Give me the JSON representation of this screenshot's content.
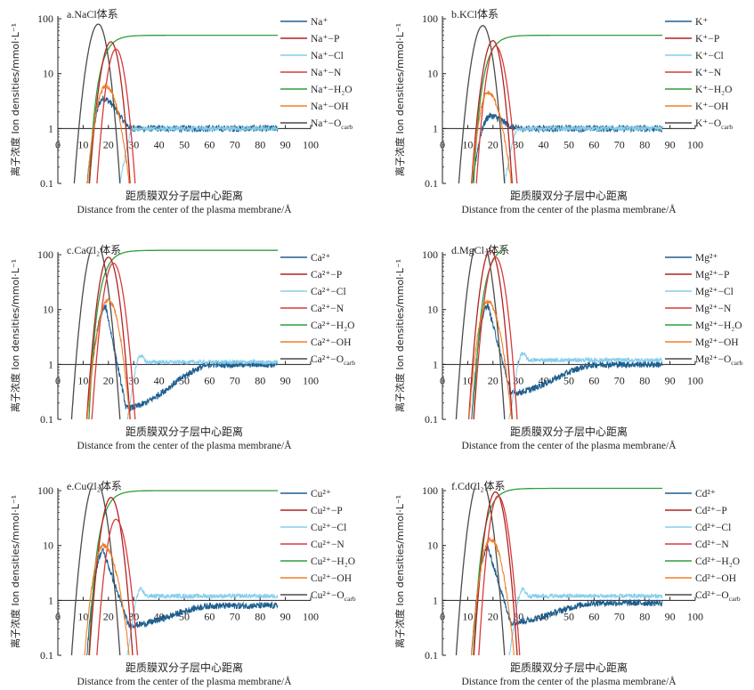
{
  "figure": {
    "ylabel": "离子浓度 Ion densities/mmol·L⁻¹",
    "xlabel_cn": "距质膜双分子层中心距离",
    "xlabel_en": "Distance from the center of the plasma membrane/Å"
  },
  "chart_data": [
    {
      "panel": "a",
      "title": "a.NaCl体系",
      "type": "line",
      "ion": "Na⁺",
      "yscale": "log",
      "ylim": [
        0.1,
        100
      ],
      "xlim": [
        0,
        100
      ],
      "xticks": [
        0,
        10,
        20,
        30,
        40,
        50,
        60,
        70,
        80,
        90,
        100
      ],
      "yticks": [
        "0.1",
        "1",
        "10",
        "100"
      ],
      "series": [
        {
          "name": "Na⁺",
          "color": "#1f5f8f",
          "peak_x": 18,
          "peak_y": 3.5,
          "tail": 1.0,
          "dip_x": 0,
          "dip_y": 0
        },
        {
          "name": "Na⁺−P",
          "color": "#b22222",
          "peak_x": 21,
          "peak_y": 38,
          "x0": 12,
          "x1": 29
        },
        {
          "name": "Na⁺−Cl",
          "color": "#87ceeb",
          "rise_x": 22,
          "plateau": 1.0
        },
        {
          "name": "Na⁺−N",
          "color": "#d93a3a",
          "peak_x": 23,
          "peak_y": 28,
          "x0": 15,
          "x1": 31
        },
        {
          "name": "Na⁺−H₂O",
          "color": "#2e9e3a",
          "rise_x": 12,
          "plateau": 50
        },
        {
          "name": "Na⁺−OH",
          "color": "#f07e26",
          "peak_x": 19,
          "peak_y": 6,
          "x0": 11,
          "x1": 29
        },
        {
          "name": "Na⁺−O_carb",
          "color": "#4a4a4a",
          "peak_x": 16,
          "peak_y": 80,
          "x0": 6,
          "x1": 25
        }
      ]
    },
    {
      "panel": "b",
      "title": "b.KCl体系",
      "type": "line",
      "ion": "K⁺",
      "yscale": "log",
      "ylim": [
        0.1,
        100
      ],
      "xlim": [
        0,
        100
      ],
      "xticks": [
        0,
        10,
        20,
        30,
        40,
        50,
        60,
        70,
        80,
        90,
        100
      ],
      "yticks": [
        "0.1",
        "1",
        "10",
        "100"
      ],
      "series": [
        {
          "name": "K⁺",
          "color": "#1f5f8f",
          "peak_x": 19,
          "peak_y": 1.7,
          "tail": 1.0,
          "dip_x": 0,
          "dip_y": 0
        },
        {
          "name": "K⁺−P",
          "color": "#b22222",
          "peak_x": 20,
          "peak_y": 40,
          "x0": 11,
          "x1": 28
        },
        {
          "name": "K⁺−Cl",
          "color": "#87ceeb",
          "rise_x": 22,
          "plateau": 1.0
        },
        {
          "name": "K⁺−N",
          "color": "#d93a3a",
          "peak_x": 21,
          "peak_y": 32,
          "x0": 13,
          "x1": 30
        },
        {
          "name": "K⁺−H₂O",
          "color": "#2e9e3a",
          "rise_x": 12,
          "plateau": 50
        },
        {
          "name": "K⁺−OH",
          "color": "#f07e26",
          "peak_x": 18,
          "peak_y": 4.5,
          "x0": 11,
          "x1": 28
        },
        {
          "name": "K⁺−O_carb",
          "color": "#4a4a4a",
          "peak_x": 16,
          "peak_y": 75,
          "x0": 6,
          "x1": 25
        }
      ]
    },
    {
      "panel": "c",
      "title": "c.CaCl₂体系",
      "type": "line",
      "ion": "Ca²⁺",
      "yscale": "log",
      "ylim": [
        0.1,
        100
      ],
      "xlim": [
        0,
        100
      ],
      "xticks": [
        0,
        10,
        20,
        30,
        40,
        50,
        60,
        70,
        80,
        90,
        100
      ],
      "yticks": [
        "0.1",
        "1",
        "10",
        "100"
      ],
      "series": [
        {
          "name": "Ca²⁺",
          "color": "#1f5f8f",
          "peak_x": 19,
          "peak_y": 11,
          "tail": 1.0,
          "dip_x": 27,
          "dip_y": 0.16
        },
        {
          "name": "Ca²⁺−P",
          "color": "#b22222",
          "peak_x": 20,
          "peak_y": 90,
          "x0": 11,
          "x1": 29
        },
        {
          "name": "Ca²⁺−Cl",
          "color": "#87ceeb",
          "rise_x": 25,
          "plateau": 1.1
        },
        {
          "name": "Ca²⁺−N",
          "color": "#d93a3a",
          "peak_x": 22,
          "peak_y": 70,
          "x0": 13,
          "x1": 31
        },
        {
          "name": "Ca²⁺−H₂O",
          "color": "#2e9e3a",
          "rise_x": 12,
          "plateau": 120
        },
        {
          "name": "Ca²⁺−OH",
          "color": "#f07e26",
          "peak_x": 20,
          "peak_y": 15,
          "x0": 11,
          "x1": 29
        },
        {
          "name": "Ca²⁺−O_carb",
          "color": "#4a4a4a",
          "peak_x": 15,
          "peak_y": 170,
          "x0": 5,
          "x1": 25
        }
      ]
    },
    {
      "panel": "d",
      "title": "d.MgCl₂体系",
      "type": "line",
      "ion": "Mg²⁺",
      "yscale": "log",
      "ylim": [
        0.1,
        100
      ],
      "xlim": [
        0,
        100
      ],
      "xticks": [
        0,
        10,
        20,
        30,
        40,
        50,
        60,
        70,
        80,
        90,
        100
      ],
      "yticks": [
        "0.1",
        "1",
        "10",
        "100"
      ],
      "series": [
        {
          "name": "Mg²⁺",
          "color": "#1f5f8f",
          "peak_x": 18,
          "peak_y": 12,
          "tail": 1.0,
          "dip_x": 27,
          "dip_y": 0.3
        },
        {
          "name": "Mg²⁺−P",
          "color": "#b22222",
          "peak_x": 19,
          "peak_y": 120,
          "x0": 10,
          "x1": 28
        },
        {
          "name": "Mg²⁺−Cl",
          "color": "#87ceeb",
          "rise_x": 24,
          "plateau": 1.2
        },
        {
          "name": "Mg²⁺−N",
          "color": "#d93a3a",
          "peak_x": 21,
          "peak_y": 90,
          "x0": 12,
          "x1": 30
        },
        {
          "name": "Mg²⁺−H₂O",
          "color": "#2e9e3a",
          "rise_x": 12,
          "plateau": 150
        },
        {
          "name": "Mg²⁺−OH",
          "color": "#f07e26",
          "peak_x": 18,
          "peak_y": 14,
          "x0": 10,
          "x1": 28
        },
        {
          "name": "Mg²⁺−O_carb",
          "color": "#4a4a4a",
          "peak_x": 15,
          "peak_y": 220,
          "x0": 5,
          "x1": 25
        }
      ]
    },
    {
      "panel": "e",
      "title": "e.CuCl₂体系",
      "type": "line",
      "ion": "Cu²⁺",
      "yscale": "log",
      "ylim": [
        0.1,
        100
      ],
      "xlim": [
        0,
        100
      ],
      "xticks": [
        0,
        10,
        20,
        30,
        40,
        50,
        60,
        70,
        80,
        90,
        100
      ],
      "yticks": [
        "0.1",
        "1",
        "10",
        "100"
      ],
      "series": [
        {
          "name": "Cu²⁺",
          "color": "#1f5f8f",
          "peak_x": 18,
          "peak_y": 8,
          "tail": 0.8,
          "dip_x": 28,
          "dip_y": 0.35
        },
        {
          "name": "Cu²⁺−P",
          "color": "#b22222",
          "peak_x": 21,
          "peak_y": 75,
          "x0": 12,
          "x1": 30
        },
        {
          "name": "Cu²⁺−Cl",
          "color": "#87ceeb",
          "rise_x": 25,
          "plateau": 1.2
        },
        {
          "name": "Cu²⁺−N",
          "color": "#d93a3a",
          "peak_x": 23,
          "peak_y": 30,
          "x0": 15,
          "x1": 32
        },
        {
          "name": "Cu²⁺−H₂O",
          "color": "#2e9e3a",
          "rise_x": 12,
          "plateau": 100
        },
        {
          "name": "Cu²⁺−OH",
          "color": "#f07e26",
          "peak_x": 18,
          "peak_y": 10,
          "x0": 10,
          "x1": 29
        },
        {
          "name": "Cu²⁺−O_carb",
          "color": "#4a4a4a",
          "peak_x": 15,
          "peak_y": 150,
          "x0": 5,
          "x1": 25
        }
      ]
    },
    {
      "panel": "f",
      "title": "f.CdCl₂体系",
      "type": "line",
      "ion": "Cd²⁺",
      "yscale": "log",
      "ylim": [
        0.1,
        100
      ],
      "xlim": [
        0,
        100
      ],
      "xticks": [
        0,
        10,
        20,
        30,
        40,
        50,
        60,
        70,
        80,
        90,
        100
      ],
      "yticks": [
        "0.1",
        "1",
        "10",
        "100"
      ],
      "series": [
        {
          "name": "Cd²⁺",
          "color": "#1f5f8f",
          "peak_x": 18,
          "peak_y": 9,
          "tail": 0.9,
          "dip_x": 27,
          "dip_y": 0.4
        },
        {
          "name": "Cd²⁺−P",
          "color": "#b22222",
          "peak_x": 21,
          "peak_y": 95,
          "x0": 12,
          "x1": 30
        },
        {
          "name": "Cd²⁺−Cl",
          "color": "#87ceeb",
          "rise_x": 24,
          "plateau": 1.2
        },
        {
          "name": "Cd²⁺−N",
          "color": "#d93a3a",
          "peak_x": 22,
          "peak_y": 80,
          "x0": 14,
          "x1": 31
        },
        {
          "name": "Cd²⁺−H₂O",
          "color": "#2e9e3a",
          "rise_x": 12,
          "plateau": 110
        },
        {
          "name": "Cd²⁺−OH",
          "color": "#f07e26",
          "peak_x": 19,
          "peak_y": 13,
          "x0": 11,
          "x1": 29
        },
        {
          "name": "Cd²⁺−O_carb",
          "color": "#4a4a4a",
          "peak_x": 15,
          "peak_y": 170,
          "x0": 5,
          "x1": 25
        }
      ]
    }
  ]
}
